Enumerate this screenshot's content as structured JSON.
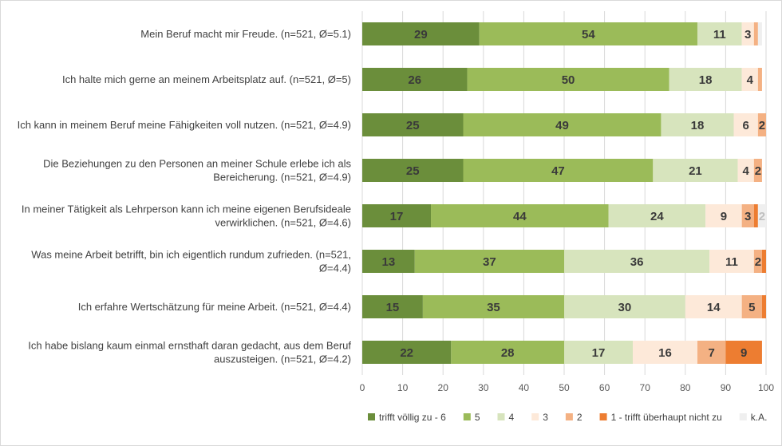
{
  "chart_data": {
    "type": "bar",
    "orientation": "horizontal",
    "stacked": true,
    "categories": [
      [
        "Mein Beruf macht mir Freude. (n=521, Ø=5.1)"
      ],
      [
        "Ich halte mich gerne an meinem Arbeitsplatz auf.  (n=521, Ø=5)"
      ],
      [
        "Ich kann in meinem Beruf meine Fähigkeiten voll nutzen. (n=521, Ø=4.9)"
      ],
      [
        "Die Beziehungen zu den Personen an meiner Schule erlebe ich als",
        "Bereicherung. (n=521, Ø=4.9)"
      ],
      [
        "In meiner Tätigkeit als Lehrperson kann ich meine eigenen Berufsideale",
        "verwirklichen. (n=521, Ø=4.6)"
      ],
      [
        "Was meine Arbeit betrifft, bin ich eigentlich rundum zufrieden.  (n=521,",
        "Ø=4.4)"
      ],
      [
        "Ich erfahre Wertschätzung für meine Arbeit. (n=521, Ø=4.4)"
      ],
      [
        "Ich habe bislang kaum einmal ernsthaft daran gedacht, aus dem Beruf",
        "auszusteigen. (n=521, Ø=4.2)"
      ]
    ],
    "series": [
      {
        "name": "trifft völlig zu - 6",
        "color": "#6b8e3b",
        "label_color": "#3a3a3a",
        "values": [
          29,
          26,
          25,
          25,
          17,
          13,
          15,
          22
        ]
      },
      {
        "name": "5",
        "color": "#9bbb59",
        "label_color": "#3a3a3a",
        "values": [
          54,
          50,
          49,
          47,
          44,
          37,
          35,
          28
        ]
      },
      {
        "name": "4",
        "color": "#d7e4bd",
        "label_color": "#3a3a3a",
        "values": [
          11,
          18,
          18,
          21,
          24,
          36,
          30,
          17
        ]
      },
      {
        "name": "3",
        "color": "#fde9d9",
        "label_color": "#3a3a3a",
        "values": [
          3,
          4,
          6,
          4,
          9,
          11,
          14,
          16
        ]
      },
      {
        "name": "2",
        "color": "#f4b183",
        "label_color": "#3a3a3a",
        "values": [
          1,
          1,
          2,
          2,
          3,
          2,
          5,
          7
        ]
      },
      {
        "name": "1 - trifft überhaupt nicht zu",
        "color": "#ed7d31",
        "label_color": "#3a3a3a",
        "values": [
          0,
          0,
          0,
          0,
          1,
          1,
          1,
          9
        ]
      },
      {
        "name": "k.A.",
        "color": "#efefef",
        "label_color": "#bfbfbf",
        "values": [
          1,
          0,
          0,
          0,
          2,
          0,
          0,
          0
        ]
      }
    ],
    "data_labels": [
      [
        "29",
        "54",
        "11",
        "3",
        "",
        "",
        ""
      ],
      [
        "26",
        "50",
        "18",
        "4",
        "",
        "",
        ""
      ],
      [
        "25",
        "49",
        "18",
        "6",
        "2",
        "",
        ""
      ],
      [
        "25",
        "47",
        "21",
        "4",
        "2",
        "",
        ""
      ],
      [
        "17",
        "44",
        "24",
        "9",
        "3",
        "",
        "2"
      ],
      [
        "13",
        "37",
        "36",
        "11",
        "2",
        "",
        ""
      ],
      [
        "15",
        "35",
        "30",
        "14",
        "5",
        "",
        ""
      ],
      [
        "22",
        "28",
        "17",
        "16",
        "7",
        "9",
        ""
      ]
    ],
    "xlim": [
      0,
      100
    ],
    "xticks": [
      "0",
      "10",
      "20",
      "30",
      "40",
      "50",
      "60",
      "70",
      "80",
      "90",
      "100"
    ],
    "grid": true,
    "legend_position": "bottom-right"
  }
}
